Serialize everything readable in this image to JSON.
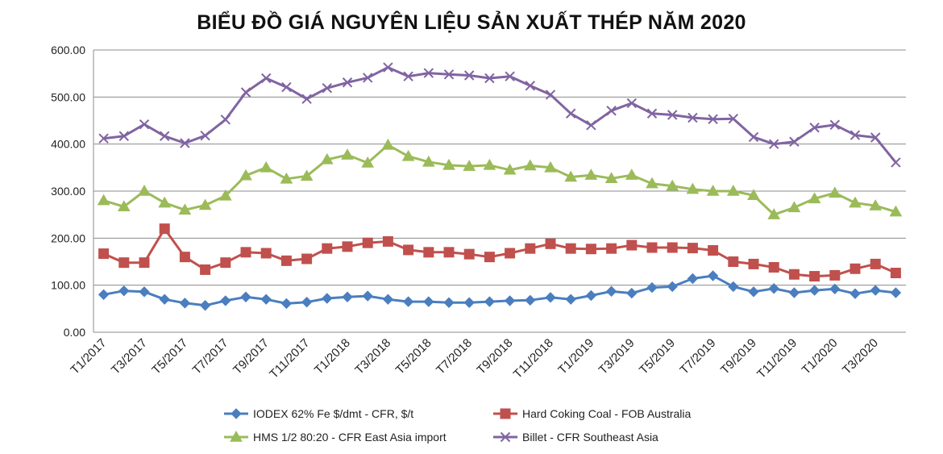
{
  "chart_data": {
    "type": "line",
    "title": "BIỂU ĐỒ GIÁ NGUYÊN LIỆU SẢN XUẤT THÉP NĂM 2020",
    "xlabel": "",
    "ylabel": "",
    "ylim": [
      0,
      600
    ],
    "yticks": [
      "0.00",
      "100.00",
      "200.00",
      "300.00",
      "400.00",
      "500.00",
      "600.00"
    ],
    "grid": true,
    "legend_position": "bottom",
    "x": [
      "T1/2017",
      "T2/2017",
      "T3/2017",
      "T4/2017",
      "T5/2017",
      "T6/2017",
      "T7/2017",
      "T8/2017",
      "T9/2017",
      "T10/2017",
      "T11/2017",
      "T12/2017",
      "T1/2018",
      "T2/2018",
      "T3/2018",
      "T4/2018",
      "T5/2018",
      "T6/2018",
      "T7/2018",
      "T8/2018",
      "T9/2018",
      "T10/2018",
      "T11/2018",
      "T12/2018",
      "T1/2019",
      "T2/2019",
      "T3/2019",
      "T4/2019",
      "T5/2019",
      "T6/2019",
      "T7/2019",
      "T8/2019",
      "T9/2019",
      "T10/2019",
      "T11/2019",
      "T12/2019",
      "T1/2020",
      "T2/2020",
      "T3/2020",
      "T4/2020"
    ],
    "xtick_labels": [
      "T1/2017",
      "T3/2017",
      "T5/2017",
      "T7/2017",
      "T9/2017",
      "T11/2017",
      "T1/2018",
      "T3/2018",
      "T5/2018",
      "T7/2018",
      "T9/2018",
      "T11/2018",
      "T1/2019",
      "T3/2019",
      "T5/2019",
      "T7/2019",
      "T9/2019",
      "T11/2019",
      "T1/2020",
      "T3/2020"
    ],
    "series": [
      {
        "name": "IODEX 62% Fe $/dmt - CFR, $/t",
        "color": "#4a7ebf",
        "marker": "diamond",
        "values": [
          80,
          88,
          86,
          70,
          62,
          57,
          67,
          75,
          70,
          61,
          64,
          72,
          75,
          77,
          70,
          65,
          65,
          63,
          63,
          65,
          67,
          68,
          74,
          70,
          78,
          87,
          83,
          95,
          97,
          114,
          120,
          97,
          86,
          93,
          84,
          89,
          92,
          82,
          89,
          84
        ]
      },
      {
        "name": "Hard Coking Coal - FOB Australia",
        "color": "#c0504d",
        "marker": "square",
        "values": [
          167,
          148,
          148,
          220,
          160,
          133,
          148,
          170,
          168,
          152,
          156,
          178,
          182,
          190,
          193,
          175,
          170,
          170,
          166,
          160,
          168,
          178,
          188,
          178,
          177,
          178,
          185,
          180,
          180,
          179,
          174,
          150,
          145,
          138,
          123,
          119,
          121,
          135,
          145,
          126
        ]
      },
      {
        "name": "HMS 1/2 80:20 - CFR East Asia import",
        "color": "#9bbb59",
        "marker": "triangle",
        "values": [
          280,
          267,
          300,
          275,
          260,
          270,
          290,
          333,
          350,
          326,
          332,
          367,
          377,
          360,
          398,
          374,
          362,
          355,
          353,
          355,
          345,
          354,
          350,
          330,
          334,
          327,
          334,
          316,
          311,
          304,
          300,
          300,
          291,
          250,
          265,
          284,
          296,
          275,
          269,
          256
        ]
      },
      {
        "name": "Billet - CFR Southeast Asia",
        "color": "#8064a2",
        "marker": "x",
        "values": [
          412,
          417,
          442,
          417,
          402,
          418,
          452,
          510,
          540,
          521,
          496,
          519,
          531,
          541,
          563,
          544,
          551,
          548,
          546,
          540,
          544,
          524,
          505,
          465,
          440,
          471,
          487,
          465,
          462,
          456,
          453,
          454,
          415,
          400,
          405,
          435,
          441,
          419,
          414,
          361
        ]
      }
    ]
  }
}
